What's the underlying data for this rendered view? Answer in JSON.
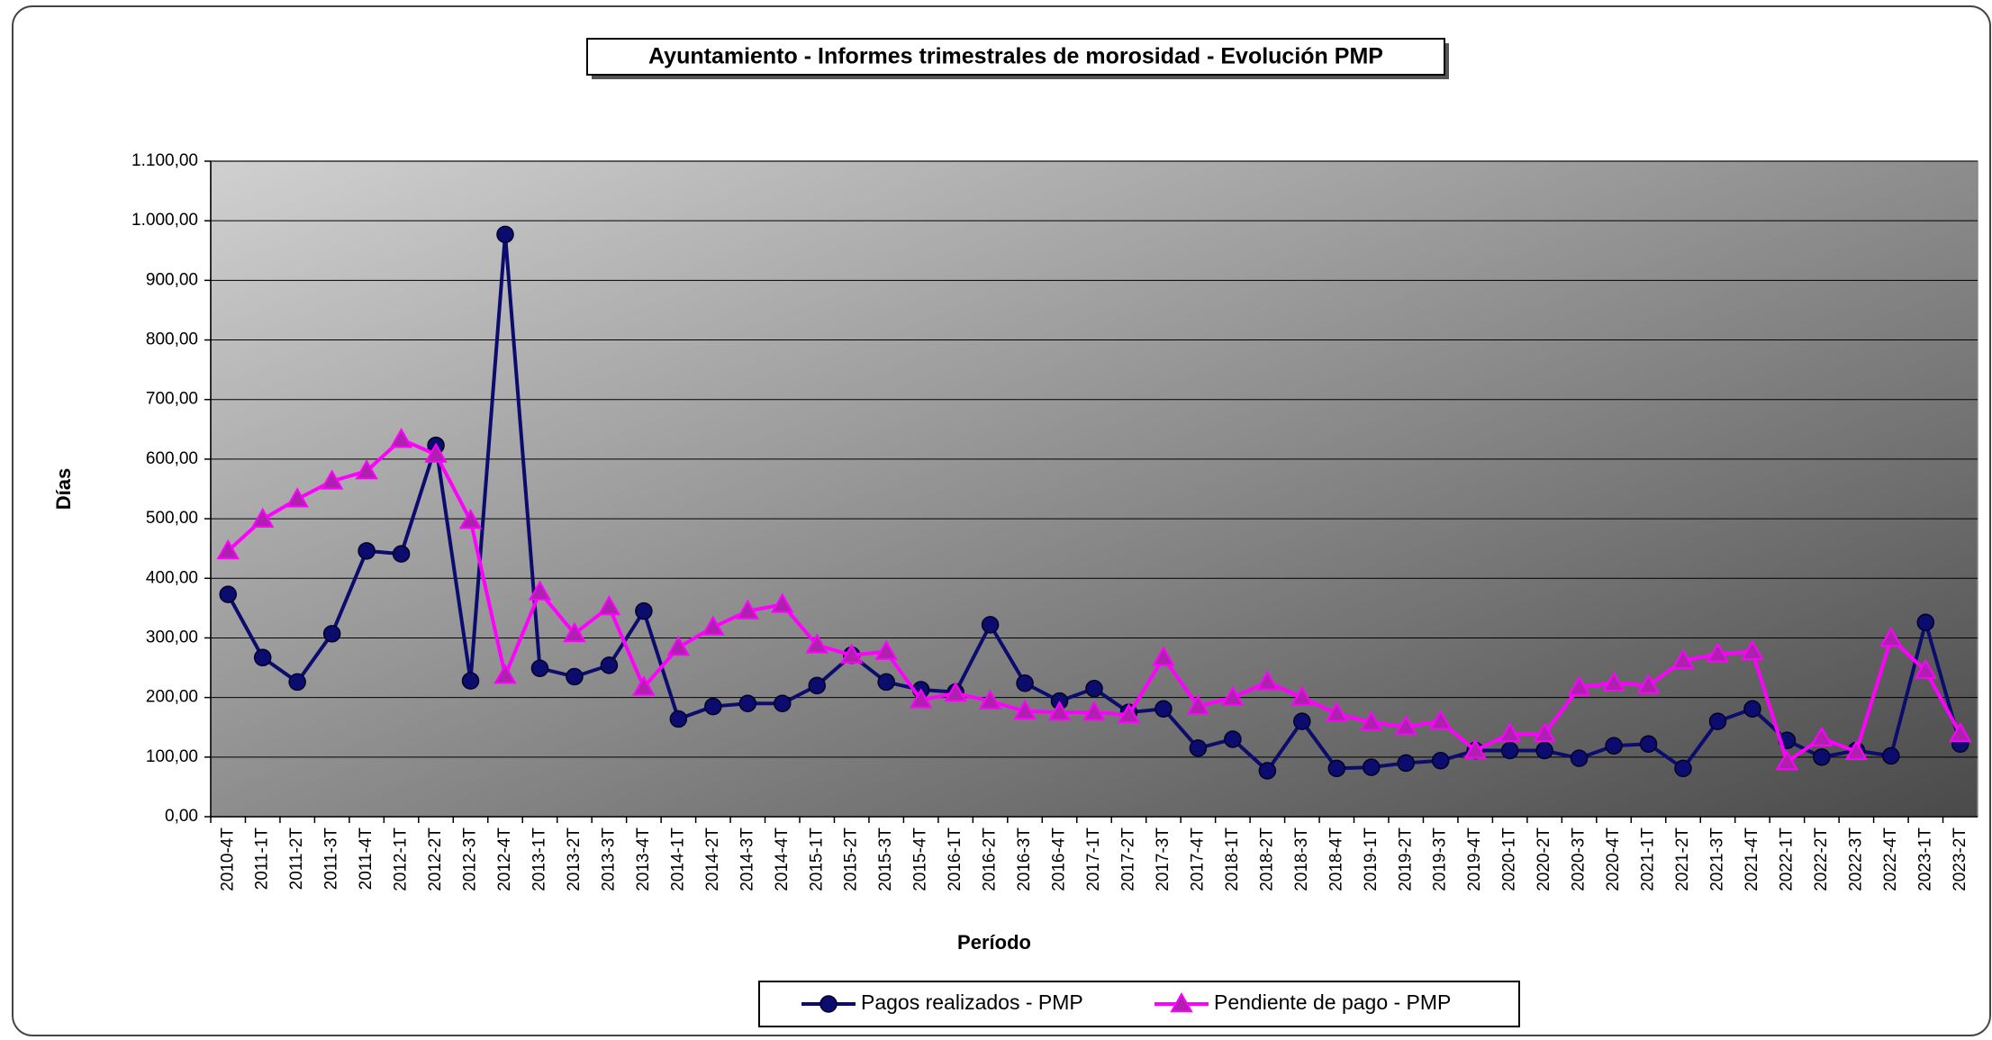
{
  "chart_data": {
    "type": "line",
    "title": "Ayuntamiento - Informes trimestrales de morosidad - Evolución PMP",
    "x_label": "Período",
    "y_label": "Días",
    "categories": [
      "2010-4T",
      "2011-1T",
      "2011-2T",
      "2011-3T",
      "2011-4T",
      "2012-1T",
      "2012-2T",
      "2012-3T",
      "2012-4T",
      "2013-1T",
      "2013-2T",
      "2013-3T",
      "2013-4T",
      "2014-1T",
      "2014-2T",
      "2014-3T",
      "2014-4T",
      "2015-1T",
      "2015-2T",
      "2015-3T",
      "2015-4T",
      "2016-1T",
      "2016-2T",
      "2016-3T",
      "2016-4T",
      "2017-1T",
      "2017-2T",
      "2017-3T",
      "2017-4T",
      "2018-1T",
      "2018-2T",
      "2018-3T",
      "2018-4T",
      "2019-1T",
      "2019-2T",
      "2019-3T",
      "2019-4T",
      "2020-1T",
      "2020-2T",
      "2020-3T",
      "2020-4T",
      "2021-1T",
      "2021-2T",
      "2021-3T",
      "2021-4T",
      "2022-1T",
      "2022-2T",
      "2022-3T",
      "2022-4T",
      "2023-1T",
      "2023-2T"
    ],
    "series": [
      {
        "name": "Pagos realizados - PMP",
        "color": "#0c0c6e",
        "marker": "circle",
        "values": [
          373,
          267,
          226,
          307,
          446,
          441,
          623,
          228,
          977,
          249,
          235,
          254,
          345,
          164,
          185,
          190,
          190,
          220,
          271,
          226,
          213,
          209,
          322,
          224,
          194,
          215,
          175,
          181,
          115,
          130,
          77,
          160,
          81,
          83,
          90,
          94,
          111,
          111,
          111,
          98,
          119,
          122,
          81,
          160,
          181,
          128,
          100,
          111,
          102,
          326,
          122
        ]
      },
      {
        "name": "Pendiente de pago - PMP",
        "color": "#ff00ff",
        "marker": "triangle",
        "values": [
          446,
          499,
          533,
          563,
          580,
          633,
          608,
          497,
          237,
          377,
          307,
          352,
          217,
          284,
          318,
          345,
          356,
          288,
          271,
          277,
          196,
          207,
          194,
          177,
          175,
          175,
          171,
          267,
          185,
          200,
          226,
          200,
          173,
          158,
          151,
          160,
          111,
          139,
          139,
          217,
          224,
          220,
          262,
          273,
          277,
          92,
          132,
          109,
          299,
          245,
          139
        ]
      }
    ],
    "ylim": [
      0,
      1100
    ],
    "yticks": [
      {
        "value": 0,
        "label": "0,00"
      },
      {
        "value": 100,
        "label": "100,00"
      },
      {
        "value": 200,
        "label": "200,00"
      },
      {
        "value": 300,
        "label": "300,00"
      },
      {
        "value": 400,
        "label": "400,00"
      },
      {
        "value": 500,
        "label": "500,00"
      },
      {
        "value": 600,
        "label": "600,00"
      },
      {
        "value": 700,
        "label": "700,00"
      },
      {
        "value": 800,
        "label": "800,00"
      },
      {
        "value": 900,
        "label": "900,00"
      },
      {
        "value": 1000,
        "label": "1.000,00"
      },
      {
        "value": 1100,
        "label": "1.100,00"
      }
    ],
    "grid": true,
    "legend": "bottom"
  }
}
